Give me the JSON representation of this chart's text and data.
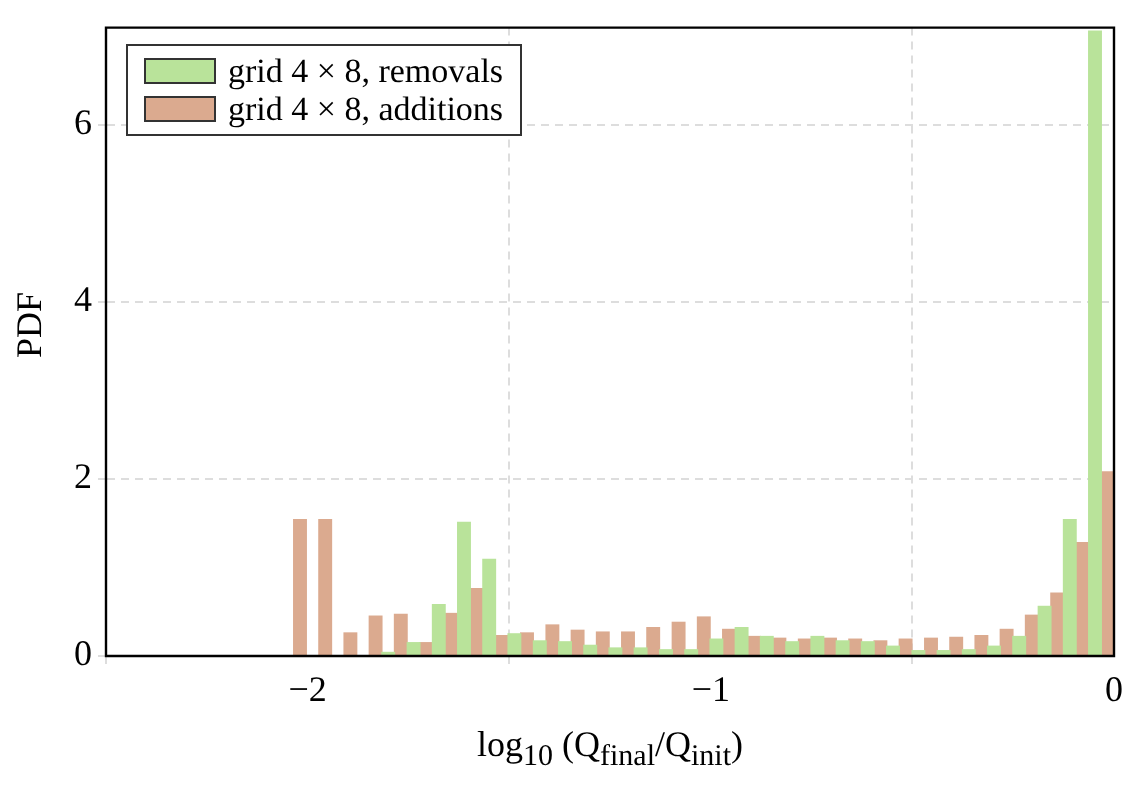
{
  "chart_data": {
    "type": "histogram",
    "xlabel": "log$_{10}$ (Q$_{final}$/Q$_{init}$)",
    "ylabel": "PDF",
    "bins": [
      -2.066,
      -2.003,
      -1.941,
      -1.878,
      -1.816,
      -1.753,
      -1.69,
      -1.628,
      -1.565,
      -1.503,
      -1.44,
      -1.377,
      -1.315,
      -1.252,
      -1.19,
      -1.127,
      -1.064,
      -1.002,
      -0.939,
      -0.877,
      -0.814,
      -0.751,
      -0.689,
      -0.626,
      -0.564,
      -0.501,
      -0.438,
      -0.376,
      -0.313,
      -0.251,
      -0.188,
      -0.125,
      -0.063,
      0
    ],
    "series": [
      {
        "name": "grid 4 × 8, removals",
        "color": "#b9e39a",
        "values": [
          0,
          0,
          0,
          0,
          0.04,
          0.15,
          0.58,
          1.51,
          1.09,
          0.25,
          0.17,
          0.16,
          0.12,
          0.09,
          0.09,
          0.07,
          0.07,
          0.19,
          0.32,
          0.22,
          0.16,
          0.22,
          0.17,
          0.16,
          0.11,
          0.06,
          0.06,
          0.07,
          0.11,
          0.22,
          0.56,
          1.54,
          7.06
        ]
      },
      {
        "name": "grid 4 × 8, additions",
        "color": "#dbaa8f",
        "values": [
          1.54,
          1.54,
          0.26,
          0.45,
          0.47,
          0.15,
          0.48,
          0.76,
          0.23,
          0.26,
          0.35,
          0.29,
          0.27,
          0.27,
          0.32,
          0.38,
          0.44,
          0.3,
          0.22,
          0.2,
          0.19,
          0.2,
          0.19,
          0.17,
          0.19,
          0.2,
          0.21,
          0.23,
          0.3,
          0.46,
          0.71,
          1.28,
          2.08
        ]
      }
    ],
    "xlim": [
      -2.5,
      0
    ],
    "xticks": [
      -2,
      -1,
      0
    ],
    "ylim": [
      0,
      7.1
    ],
    "yticks": [
      0,
      2,
      4,
      6
    ],
    "grid": true,
    "legend": "top left"
  }
}
